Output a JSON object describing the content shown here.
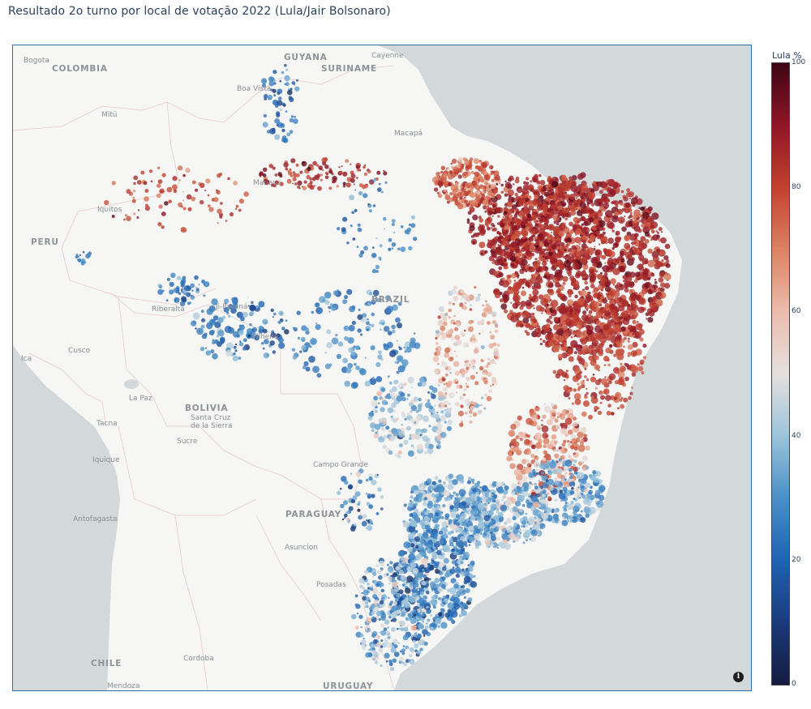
{
  "title": "Resultado 2o turno por local de votação 2022 (Lula/Jair Bolsonaro)",
  "colorbar": {
    "title": "Lula %",
    "ticks": [
      "100",
      "80",
      "60",
      "40",
      "20",
      "0"
    ],
    "range": [
      0,
      100
    ]
  },
  "info_button": "i",
  "country_labels": [
    "COLOMBIA",
    "GUYANA",
    "SURINAME",
    "PERU",
    "BRAZIL",
    "BOLIVIA",
    "PARAGUAY",
    "CHILE",
    "URUGUAY"
  ],
  "city_labels": [
    "Bogota",
    "Cayenne",
    "Boa Vista",
    "Mitú",
    "Macapá",
    "Manaus",
    "Iquitos",
    "Riberalta",
    "Ji-Paraná",
    "Vilhena",
    "Cusco",
    "Ica",
    "La Paz",
    "Santa Cruz de la Sierra",
    "Sucre",
    "Tacna",
    "Iquique",
    "Campo Grande",
    "Antofagasta",
    "Asuncion",
    "Posadas",
    "Cordoba",
    "Mendoza"
  ],
  "colors": {
    "low": "#141b40",
    "mid": "#e5e0dd",
    "high": "#3e0615",
    "ocean": "#d3d8db",
    "land": "#f6f6f4",
    "frame": "#2e6fa7"
  }
}
